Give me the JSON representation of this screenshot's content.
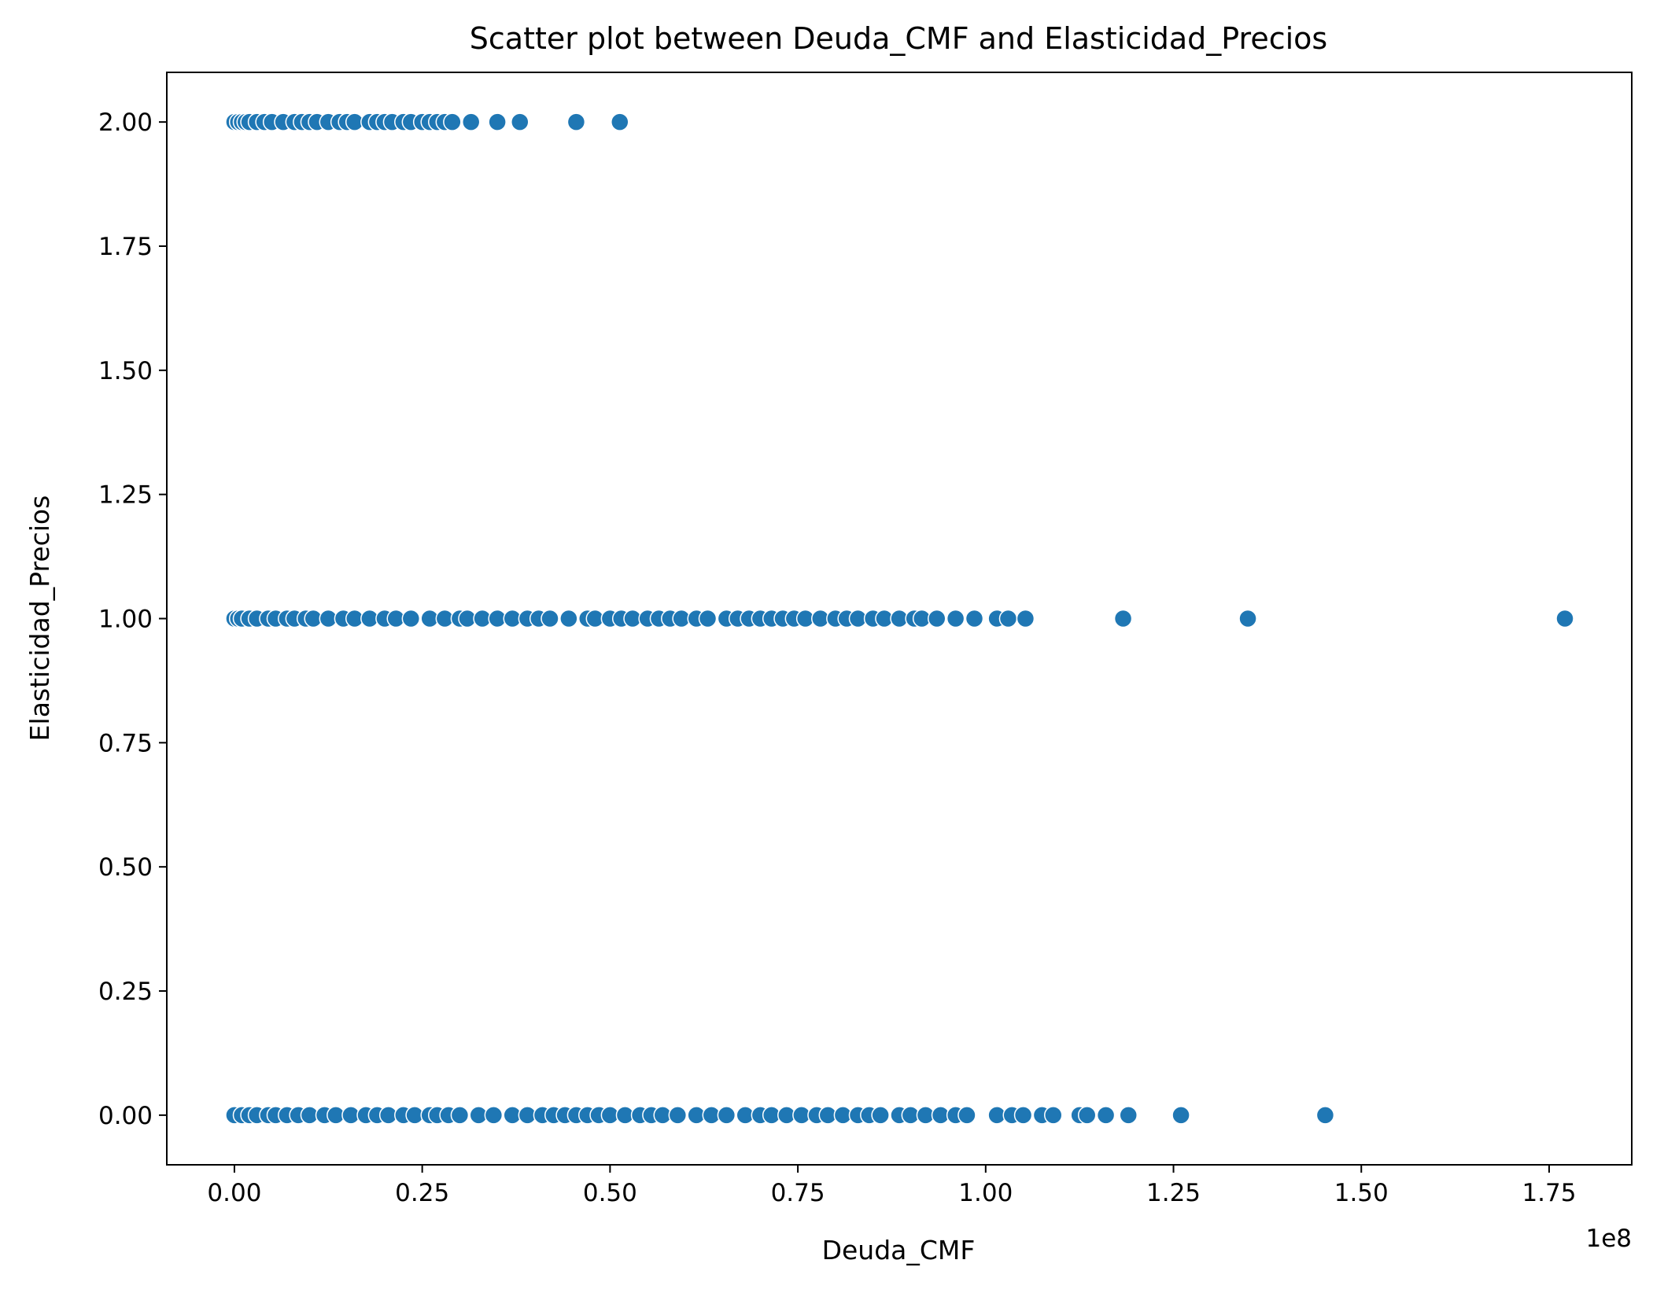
{
  "chart_data": {
    "type": "scatter",
    "title": "Scatter plot between Deuda_CMF and Elasticidad_Precios",
    "xlabel": "Deuda_CMF",
    "ylabel": "Elasticidad_Precios",
    "x_offset_label": "1e8",
    "xlim": [
      -0.09,
      1.86
    ],
    "ylim": [
      -0.1,
      2.1
    ],
    "xticks": [
      {
        "value": 0.0,
        "label": "0.00"
      },
      {
        "value": 0.25,
        "label": "0.25"
      },
      {
        "value": 0.5,
        "label": "0.50"
      },
      {
        "value": 0.75,
        "label": "0.75"
      },
      {
        "value": 1.0,
        "label": "1.00"
      },
      {
        "value": 1.25,
        "label": "1.25"
      },
      {
        "value": 1.5,
        "label": "1.50"
      },
      {
        "value": 1.75,
        "label": "1.75"
      }
    ],
    "yticks": [
      {
        "value": 0.0,
        "label": "0.00"
      },
      {
        "value": 0.25,
        "label": "0.25"
      },
      {
        "value": 0.5,
        "label": "0.50"
      },
      {
        "value": 0.75,
        "label": "0.75"
      },
      {
        "value": 1.0,
        "label": "1.00"
      },
      {
        "value": 1.25,
        "label": "1.25"
      },
      {
        "value": 1.5,
        "label": "1.50"
      },
      {
        "value": 1.75,
        "label": "1.75"
      },
      {
        "value": 2.0,
        "label": "2.00"
      }
    ],
    "grid": false,
    "marker_color": "#1f77b4",
    "marker_edge_color": "#ffffff",
    "points": [
      {
        "x": 0.0,
        "y": 2
      },
      {
        "x": 0.005,
        "y": 2
      },
      {
        "x": 0.01,
        "y": 2
      },
      {
        "x": 0.015,
        "y": 2
      },
      {
        "x": 0.02,
        "y": 2
      },
      {
        "x": 0.03,
        "y": 2
      },
      {
        "x": 0.04,
        "y": 2
      },
      {
        "x": 0.05,
        "y": 2
      },
      {
        "x": 0.065,
        "y": 2
      },
      {
        "x": 0.08,
        "y": 2
      },
      {
        "x": 0.09,
        "y": 2
      },
      {
        "x": 0.1,
        "y": 2
      },
      {
        "x": 0.11,
        "y": 2
      },
      {
        "x": 0.125,
        "y": 2
      },
      {
        "x": 0.14,
        "y": 2
      },
      {
        "x": 0.15,
        "y": 2
      },
      {
        "x": 0.16,
        "y": 2
      },
      {
        "x": 0.18,
        "y": 2
      },
      {
        "x": 0.19,
        "y": 2
      },
      {
        "x": 0.2,
        "y": 2
      },
      {
        "x": 0.21,
        "y": 2
      },
      {
        "x": 0.225,
        "y": 2
      },
      {
        "x": 0.235,
        "y": 2
      },
      {
        "x": 0.25,
        "y": 2
      },
      {
        "x": 0.26,
        "y": 2
      },
      {
        "x": 0.27,
        "y": 2
      },
      {
        "x": 0.28,
        "y": 2
      },
      {
        "x": 0.29,
        "y": 2
      },
      {
        "x": 0.315,
        "y": 2
      },
      {
        "x": 0.35,
        "y": 2
      },
      {
        "x": 0.38,
        "y": 2
      },
      {
        "x": 0.455,
        "y": 2
      },
      {
        "x": 0.513,
        "y": 2
      },
      {
        "x": 0.0,
        "y": 1
      },
      {
        "x": 0.005,
        "y": 1
      },
      {
        "x": 0.01,
        "y": 1
      },
      {
        "x": 0.02,
        "y": 1
      },
      {
        "x": 0.03,
        "y": 1
      },
      {
        "x": 0.045,
        "y": 1
      },
      {
        "x": 0.055,
        "y": 1
      },
      {
        "x": 0.07,
        "y": 1
      },
      {
        "x": 0.08,
        "y": 1
      },
      {
        "x": 0.095,
        "y": 1
      },
      {
        "x": 0.105,
        "y": 1
      },
      {
        "x": 0.125,
        "y": 1
      },
      {
        "x": 0.145,
        "y": 1
      },
      {
        "x": 0.16,
        "y": 1
      },
      {
        "x": 0.18,
        "y": 1
      },
      {
        "x": 0.2,
        "y": 1
      },
      {
        "x": 0.215,
        "y": 1
      },
      {
        "x": 0.235,
        "y": 1
      },
      {
        "x": 0.26,
        "y": 1
      },
      {
        "x": 0.28,
        "y": 1
      },
      {
        "x": 0.3,
        "y": 1
      },
      {
        "x": 0.31,
        "y": 1
      },
      {
        "x": 0.33,
        "y": 1
      },
      {
        "x": 0.35,
        "y": 1
      },
      {
        "x": 0.37,
        "y": 1
      },
      {
        "x": 0.39,
        "y": 1
      },
      {
        "x": 0.405,
        "y": 1
      },
      {
        "x": 0.42,
        "y": 1
      },
      {
        "x": 0.445,
        "y": 1
      },
      {
        "x": 0.47,
        "y": 1
      },
      {
        "x": 0.48,
        "y": 1
      },
      {
        "x": 0.5,
        "y": 1
      },
      {
        "x": 0.515,
        "y": 1
      },
      {
        "x": 0.53,
        "y": 1
      },
      {
        "x": 0.55,
        "y": 1
      },
      {
        "x": 0.565,
        "y": 1
      },
      {
        "x": 0.58,
        "y": 1
      },
      {
        "x": 0.595,
        "y": 1
      },
      {
        "x": 0.615,
        "y": 1
      },
      {
        "x": 0.63,
        "y": 1
      },
      {
        "x": 0.655,
        "y": 1
      },
      {
        "x": 0.67,
        "y": 1
      },
      {
        "x": 0.685,
        "y": 1
      },
      {
        "x": 0.7,
        "y": 1
      },
      {
        "x": 0.715,
        "y": 1
      },
      {
        "x": 0.73,
        "y": 1
      },
      {
        "x": 0.745,
        "y": 1
      },
      {
        "x": 0.76,
        "y": 1
      },
      {
        "x": 0.78,
        "y": 1
      },
      {
        "x": 0.8,
        "y": 1
      },
      {
        "x": 0.815,
        "y": 1
      },
      {
        "x": 0.83,
        "y": 1
      },
      {
        "x": 0.85,
        "y": 1
      },
      {
        "x": 0.865,
        "y": 1
      },
      {
        "x": 0.885,
        "y": 1
      },
      {
        "x": 0.905,
        "y": 1
      },
      {
        "x": 0.915,
        "y": 1
      },
      {
        "x": 0.935,
        "y": 1
      },
      {
        "x": 0.96,
        "y": 1
      },
      {
        "x": 0.985,
        "y": 1
      },
      {
        "x": 1.015,
        "y": 1
      },
      {
        "x": 1.03,
        "y": 1
      },
      {
        "x": 1.053,
        "y": 1
      },
      {
        "x": 1.183,
        "y": 1
      },
      {
        "x": 1.349,
        "y": 1
      },
      {
        "x": 1.771,
        "y": 1
      },
      {
        "x": 0.0,
        "y": 0
      },
      {
        "x": 0.01,
        "y": 0
      },
      {
        "x": 0.02,
        "y": 0
      },
      {
        "x": 0.03,
        "y": 0
      },
      {
        "x": 0.045,
        "y": 0
      },
      {
        "x": 0.055,
        "y": 0
      },
      {
        "x": 0.07,
        "y": 0
      },
      {
        "x": 0.085,
        "y": 0
      },
      {
        "x": 0.1,
        "y": 0
      },
      {
        "x": 0.12,
        "y": 0
      },
      {
        "x": 0.135,
        "y": 0
      },
      {
        "x": 0.155,
        "y": 0
      },
      {
        "x": 0.175,
        "y": 0
      },
      {
        "x": 0.19,
        "y": 0
      },
      {
        "x": 0.205,
        "y": 0
      },
      {
        "x": 0.225,
        "y": 0
      },
      {
        "x": 0.24,
        "y": 0
      },
      {
        "x": 0.26,
        "y": 0
      },
      {
        "x": 0.27,
        "y": 0
      },
      {
        "x": 0.285,
        "y": 0
      },
      {
        "x": 0.3,
        "y": 0
      },
      {
        "x": 0.325,
        "y": 0
      },
      {
        "x": 0.345,
        "y": 0
      },
      {
        "x": 0.37,
        "y": 0
      },
      {
        "x": 0.39,
        "y": 0
      },
      {
        "x": 0.41,
        "y": 0
      },
      {
        "x": 0.425,
        "y": 0
      },
      {
        "x": 0.44,
        "y": 0
      },
      {
        "x": 0.455,
        "y": 0
      },
      {
        "x": 0.47,
        "y": 0
      },
      {
        "x": 0.485,
        "y": 0
      },
      {
        "x": 0.5,
        "y": 0
      },
      {
        "x": 0.52,
        "y": 0
      },
      {
        "x": 0.54,
        "y": 0
      },
      {
        "x": 0.555,
        "y": 0
      },
      {
        "x": 0.57,
        "y": 0
      },
      {
        "x": 0.59,
        "y": 0
      },
      {
        "x": 0.615,
        "y": 0
      },
      {
        "x": 0.635,
        "y": 0
      },
      {
        "x": 0.655,
        "y": 0
      },
      {
        "x": 0.68,
        "y": 0
      },
      {
        "x": 0.7,
        "y": 0
      },
      {
        "x": 0.715,
        "y": 0
      },
      {
        "x": 0.735,
        "y": 0
      },
      {
        "x": 0.755,
        "y": 0
      },
      {
        "x": 0.775,
        "y": 0
      },
      {
        "x": 0.79,
        "y": 0
      },
      {
        "x": 0.81,
        "y": 0
      },
      {
        "x": 0.83,
        "y": 0
      },
      {
        "x": 0.845,
        "y": 0
      },
      {
        "x": 0.86,
        "y": 0
      },
      {
        "x": 0.885,
        "y": 0
      },
      {
        "x": 0.9,
        "y": 0
      },
      {
        "x": 0.92,
        "y": 0
      },
      {
        "x": 0.94,
        "y": 0
      },
      {
        "x": 0.96,
        "y": 0
      },
      {
        "x": 0.975,
        "y": 0
      },
      {
        "x": 1.015,
        "y": 0
      },
      {
        "x": 1.035,
        "y": 0
      },
      {
        "x": 1.05,
        "y": 0
      },
      {
        "x": 1.075,
        "y": 0
      },
      {
        "x": 1.09,
        "y": 0
      },
      {
        "x": 1.125,
        "y": 0
      },
      {
        "x": 1.135,
        "y": 0
      },
      {
        "x": 1.16,
        "y": 0
      },
      {
        "x": 1.19,
        "y": 0
      },
      {
        "x": 1.26,
        "y": 0
      },
      {
        "x": 1.452,
        "y": 0
      }
    ]
  }
}
